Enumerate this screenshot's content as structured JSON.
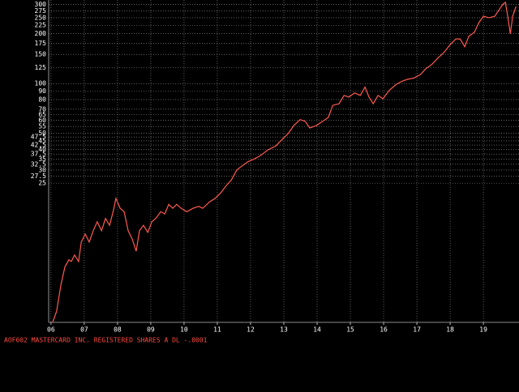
{
  "chart_data": {
    "type": "line",
    "title": "AOF602  MASTERCARD INC. REGISTERED SHARES A DL -.0001",
    "log_y": true,
    "grid": true,
    "xlim": [
      2005.93,
      2020.07
    ],
    "xticks": [
      {
        "value": 2006,
        "label": "06"
      },
      {
        "value": 2007,
        "label": "07"
      },
      {
        "value": 2008,
        "label": "08"
      },
      {
        "value": 2009,
        "label": "09"
      },
      {
        "value": 2010,
        "label": "10"
      },
      {
        "value": 2011,
        "label": "11"
      },
      {
        "value": 2012,
        "label": "12"
      },
      {
        "value": 2013,
        "label": "13"
      },
      {
        "value": 2014,
        "label": "14"
      },
      {
        "value": 2015,
        "label": "15"
      },
      {
        "value": 2016,
        "label": "16"
      },
      {
        "value": 2017,
        "label": "17"
      },
      {
        "value": 2018,
        "label": "18"
      },
      {
        "value": 2019,
        "label": "19"
      }
    ],
    "ylim": [
      3.6,
      320
    ],
    "yticks": [
      300,
      275,
      250,
      225,
      200,
      175,
      150,
      125,
      100,
      90,
      80,
      70,
      65,
      60,
      55,
      50,
      47.5,
      45,
      42.5,
      40,
      37.5,
      35,
      32.5,
      30,
      27.5,
      25
    ],
    "x": [
      2006.05,
      2006.17,
      2006.3,
      2006.42,
      2006.54,
      2006.61,
      2006.71,
      2006.83,
      2006.91,
      2007.03,
      2007.15,
      2007.27,
      2007.39,
      2007.52,
      2007.64,
      2007.76,
      2007.88,
      2007.95,
      2008.08,
      2008.2,
      2008.32,
      2008.44,
      2008.56,
      2008.66,
      2008.78,
      2008.91,
      2009.03,
      2009.15,
      2009.3,
      2009.42,
      2009.54,
      2009.66,
      2009.78,
      2009.91,
      2010.08,
      2010.27,
      2010.44,
      2010.56,
      2010.76,
      2010.93,
      2011.1,
      2011.25,
      2011.42,
      2011.59,
      2011.73,
      2011.91,
      2012.08,
      2012.27,
      2012.52,
      2012.76,
      2012.95,
      2013.13,
      2013.3,
      2013.49,
      2013.64,
      2013.78,
      2013.98,
      2014.17,
      2014.34,
      2014.47,
      2014.66,
      2014.81,
      2014.95,
      2015.13,
      2015.3,
      2015.44,
      2015.56,
      2015.69,
      2015.83,
      2015.98,
      2016.17,
      2016.37,
      2016.54,
      2016.71,
      2016.91,
      2017.1,
      2017.27,
      2017.44,
      2017.64,
      2017.81,
      2018.0,
      2018.17,
      2018.3,
      2018.44,
      2018.56,
      2018.73,
      2018.86,
      2019.0,
      2019.17,
      2019.34,
      2019.47,
      2019.59,
      2019.66,
      2019.73,
      2019.81,
      2019.88,
      2019.98
    ],
    "series": [
      {
        "color": "#ff5a50",
        "values": [
          3.6,
          4.2,
          6.1,
          7.8,
          8.6,
          8.4,
          9.2,
          8.4,
          11.0,
          12.3,
          11.0,
          12.9,
          14.6,
          12.9,
          15.3,
          13.9,
          17.2,
          20.2,
          17.6,
          16.8,
          12.9,
          11.5,
          9.7,
          12.9,
          13.9,
          12.6,
          14.6,
          15.3,
          16.8,
          16.3,
          18.6,
          17.6,
          18.6,
          17.6,
          16.8,
          17.6,
          18.1,
          17.6,
          19.2,
          20.2,
          21.8,
          23.9,
          26.1,
          30.1,
          31.6,
          33.6,
          34.8,
          36.4,
          39.7,
          42.0,
          45.9,
          49.8,
          55.8,
          60.5,
          59.1,
          53.9,
          55.8,
          59.1,
          62.6,
          73.8,
          75.5,
          84.8,
          82.9,
          87.7,
          84.8,
          95.2,
          82.9,
          75.5,
          84.8,
          81.0,
          91.0,
          98.5,
          103,
          106,
          108,
          113,
          123,
          130,
          143,
          154,
          172,
          186,
          186,
          167,
          193,
          204,
          233,
          255,
          250,
          255,
          279,
          302,
          310,
          255,
          200,
          255,
          292
        ]
      }
    ]
  }
}
